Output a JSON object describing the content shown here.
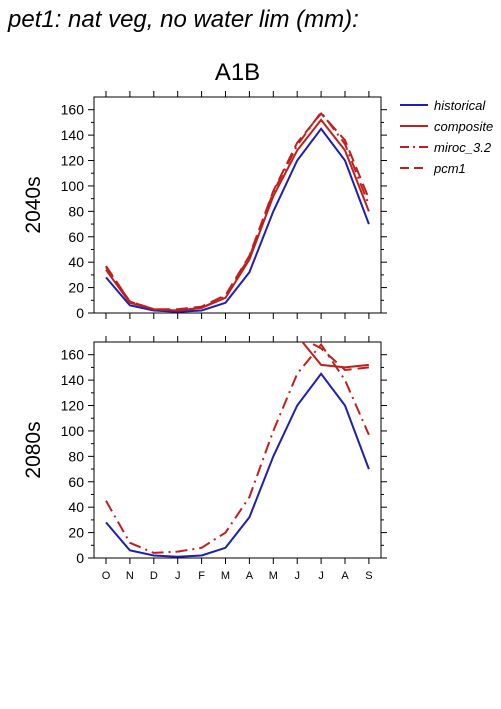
{
  "page_title": "pet1: nat veg, no water lim (mm):",
  "chart_data": [
    {
      "type": "line",
      "title": "A1B",
      "ylabel": "2040s",
      "xlabel": "",
      "categories": [
        "O",
        "N",
        "D",
        "J",
        "F",
        "M",
        "A",
        "M",
        "J",
        "J",
        "A",
        "S"
      ],
      "ylim": [
        0,
        170
      ],
      "yticks": [
        0,
        20,
        40,
        60,
        80,
        100,
        120,
        140,
        160
      ],
      "series": [
        {
          "name": "historical",
          "color": "#1f1fb4",
          "style": "solid",
          "values": [
            28,
            6,
            2,
            1,
            2,
            8,
            32,
            80,
            120,
            145,
            120,
            70
          ]
        },
        {
          "name": "composite",
          "color": "#c0201c",
          "style": "solid",
          "values": [
            34,
            8,
            3,
            2,
            4,
            12,
            42,
            92,
            128,
            152,
            128,
            80
          ]
        },
        {
          "name": "miroc_3.2",
          "color": "#c0201c",
          "style": "dashdot",
          "values": [
            36,
            9,
            3,
            2,
            4,
            13,
            44,
            95,
            132,
            158,
            133,
            85
          ]
        },
        {
          "name": "pcm1",
          "color": "#c0201c",
          "style": "dash",
          "values": [
            37,
            9,
            3,
            3,
            5,
            14,
            45,
            96,
            134,
            157,
            136,
            90
          ]
        }
      ]
    },
    {
      "type": "line",
      "title": "",
      "ylabel": "2080s",
      "xlabel": "",
      "categories": [
        "O",
        "N",
        "D",
        "J",
        "F",
        "M",
        "A",
        "M",
        "J",
        "J",
        "A",
        "S"
      ],
      "ylim": [
        0,
        170
      ],
      "yticks": [
        0,
        20,
        40,
        60,
        80,
        100,
        120,
        140,
        160
      ],
      "series": [
        {
          "name": "historical",
          "color": "#1f1fb4",
          "style": "solid",
          "values": [
            28,
            6,
            2,
            1,
            2,
            8,
            32,
            80,
            120,
            145,
            120,
            70
          ]
        },
        {
          "name": "composite",
          "color": "#c0201c",
          "style": "solid",
          "values": [
            null,
            null,
            null,
            null,
            null,
            null,
            null,
            null,
            175,
            152,
            150,
            152
          ]
        },
        {
          "name": "miroc_3.2",
          "color": "#c0201c",
          "style": "dashdot",
          "values": [
            45,
            12,
            4,
            5,
            8,
            20,
            48,
            100,
            145,
            168,
            140,
            97
          ]
        },
        {
          "name": "pcm1",
          "color": "#c0201c",
          "style": "dash",
          "values": [
            null,
            null,
            null,
            null,
            null,
            null,
            null,
            null,
            175,
            165,
            148,
            150
          ]
        }
      ]
    }
  ],
  "legend": {
    "placement": "right",
    "entries": [
      {
        "label": "historical",
        "color": "#1f1fb4",
        "style": "solid"
      },
      {
        "label": "composite",
        "color": "#c0201c",
        "style": "solid"
      },
      {
        "label": "miroc_3.2",
        "color": "#c0201c",
        "style": "dashdot"
      },
      {
        "label": "pcm1",
        "color": "#c0201c",
        "style": "dash"
      }
    ]
  }
}
